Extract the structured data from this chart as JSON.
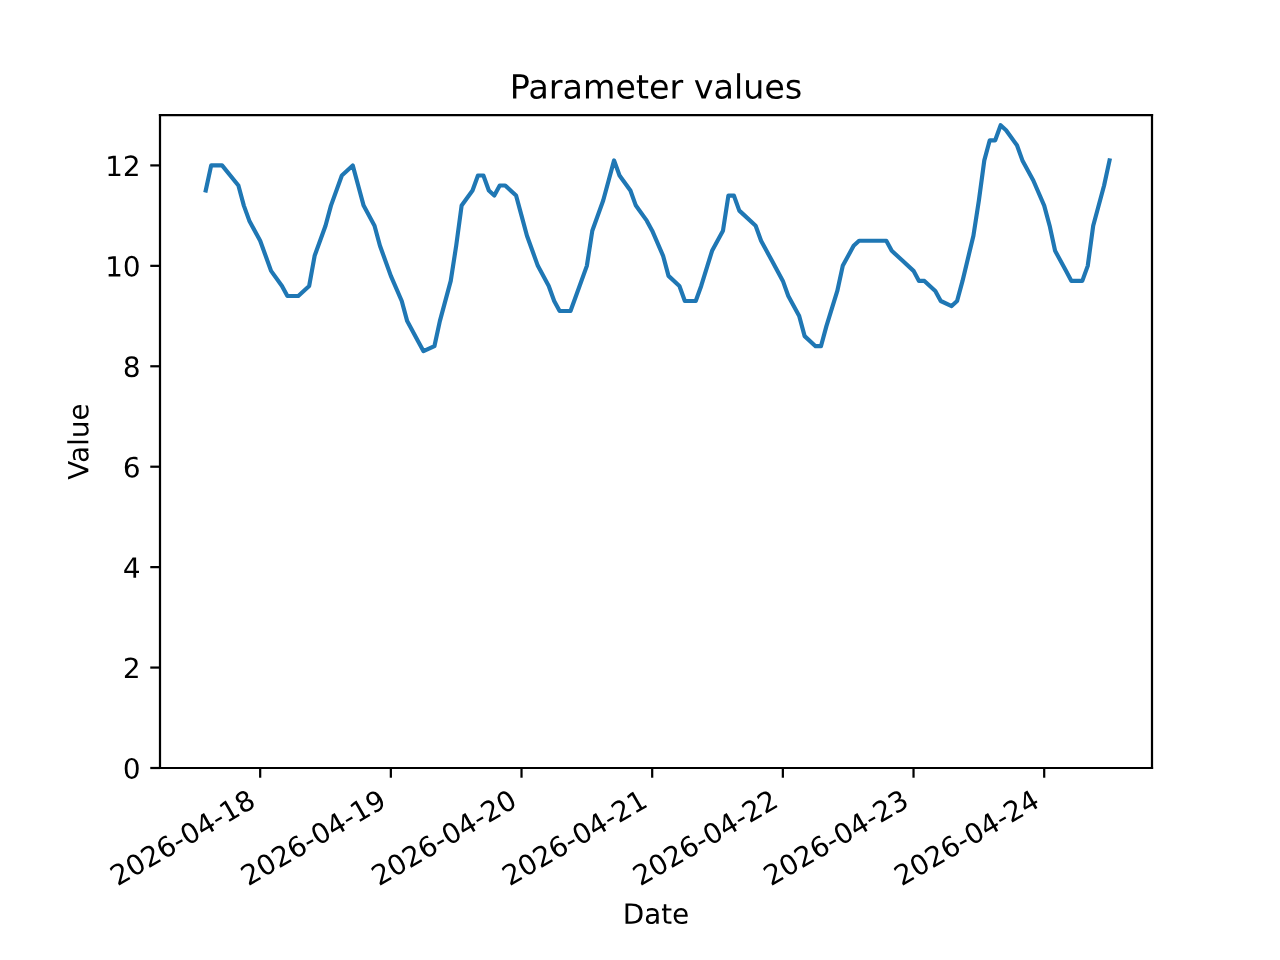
{
  "chart_data": {
    "type": "line",
    "title": "Parameter values",
    "xlabel": "Date",
    "ylabel": "Value",
    "x": [
      "2026-04-17T14:00",
      "2026-04-17T15:00",
      "2026-04-17T17:00",
      "2026-04-17T20:00",
      "2026-04-17T21:00",
      "2026-04-17T22:00",
      "2026-04-18T00:00",
      "2026-04-18T02:00",
      "2026-04-18T04:00",
      "2026-04-18T05:00",
      "2026-04-18T07:00",
      "2026-04-18T09:00",
      "2026-04-18T10:00",
      "2026-04-18T12:00",
      "2026-04-18T13:00",
      "2026-04-18T15:00",
      "2026-04-18T17:00",
      "2026-04-18T18:00",
      "2026-04-18T19:00",
      "2026-04-18T21:00",
      "2026-04-18T22:00",
      "2026-04-19T00:00",
      "2026-04-19T02:00",
      "2026-04-19T03:00",
      "2026-04-19T05:00",
      "2026-04-19T06:00",
      "2026-04-19T08:00",
      "2026-04-19T09:00",
      "2026-04-19T11:00",
      "2026-04-19T12:00",
      "2026-04-19T13:00",
      "2026-04-19T15:00",
      "2026-04-19T16:00",
      "2026-04-19T17:00",
      "2026-04-19T18:00",
      "2026-04-19T19:00",
      "2026-04-19T20:00",
      "2026-04-19T21:00",
      "2026-04-19T23:00",
      "2026-04-20T00:00",
      "2026-04-20T01:00",
      "2026-04-20T02:00",
      "2026-04-20T03:00",
      "2026-04-20T05:00",
      "2026-04-20T06:00",
      "2026-04-20T07:00",
      "2026-04-20T09:00",
      "2026-04-20T10:00",
      "2026-04-20T12:00",
      "2026-04-20T13:00",
      "2026-04-20T15:00",
      "2026-04-20T16:00",
      "2026-04-20T17:00",
      "2026-04-20T18:00",
      "2026-04-20T20:00",
      "2026-04-20T21:00",
      "2026-04-20T23:00",
      "2026-04-21T00:00",
      "2026-04-21T02:00",
      "2026-04-21T03:00",
      "2026-04-21T05:00",
      "2026-04-21T06:00",
      "2026-04-21T08:00",
      "2026-04-21T09:00",
      "2026-04-21T11:00",
      "2026-04-21T13:00",
      "2026-04-21T14:00",
      "2026-04-21T15:00",
      "2026-04-21T16:00",
      "2026-04-21T17:00",
      "2026-04-21T19:00",
      "2026-04-21T20:00",
      "2026-04-21T22:00",
      "2026-04-22T00:00",
      "2026-04-22T01:00",
      "2026-04-22T03:00",
      "2026-04-22T04:00",
      "2026-04-22T06:00",
      "2026-04-22T07:00",
      "2026-04-22T08:00",
      "2026-04-22T10:00",
      "2026-04-22T11:00",
      "2026-04-22T13:00",
      "2026-04-22T14:00",
      "2026-04-22T17:00",
      "2026-04-22T19:00",
      "2026-04-22T20:00",
      "2026-04-22T22:00",
      "2026-04-23T00:00",
      "2026-04-23T01:00",
      "2026-04-23T02:00",
      "2026-04-23T04:00",
      "2026-04-23T05:00",
      "2026-04-23T07:00",
      "2026-04-23T08:00",
      "2026-04-23T09:00",
      "2026-04-23T11:00",
      "2026-04-23T12:00",
      "2026-04-23T13:00",
      "2026-04-23T14:00",
      "2026-04-23T15:00",
      "2026-04-23T16:00",
      "2026-04-23T17:00",
      "2026-04-23T19:00",
      "2026-04-23T20:00",
      "2026-04-23T22:00",
      "2026-04-24T00:00",
      "2026-04-24T01:00",
      "2026-04-24T02:00",
      "2026-04-24T04:00",
      "2026-04-24T05:00",
      "2026-04-24T07:00",
      "2026-04-24T08:00",
      "2026-04-24T09:00",
      "2026-04-24T11:00",
      "2026-04-24T12:00"
    ],
    "series": [
      {
        "color": "#1f77b4",
        "values": [
          11.5,
          12.0,
          12.0,
          11.6,
          11.2,
          10.9,
          10.5,
          9.9,
          9.6,
          9.4,
          9.4,
          9.6,
          10.2,
          10.8,
          11.2,
          11.8,
          12.0,
          11.6,
          11.2,
          10.8,
          10.4,
          9.8,
          9.3,
          8.9,
          8.5,
          8.3,
          8.4,
          8.9,
          9.7,
          10.4,
          11.2,
          11.5,
          11.8,
          11.8,
          11.5,
          11.4,
          11.6,
          11.6,
          11.4,
          11.0,
          10.6,
          10.3,
          10.0,
          9.6,
          9.3,
          9.1,
          9.1,
          9.4,
          10.0,
          10.7,
          11.3,
          11.7,
          12.1,
          11.8,
          11.5,
          11.2,
          10.9,
          10.7,
          10.2,
          9.8,
          9.6,
          9.3,
          9.3,
          9.6,
          10.3,
          10.7,
          11.4,
          11.4,
          11.1,
          11.0,
          10.8,
          10.5,
          10.1,
          9.7,
          9.4,
          9.0,
          8.6,
          8.4,
          8.4,
          8.8,
          9.5,
          10.0,
          10.4,
          10.5,
          10.5,
          10.5,
          10.3,
          10.1,
          9.9,
          9.7,
          9.7,
          9.5,
          9.3,
          9.2,
          9.3,
          9.7,
          10.6,
          11.3,
          12.1,
          12.5,
          12.5,
          12.8,
          12.7,
          12.4,
          12.1,
          11.7,
          11.2,
          10.8,
          10.3,
          9.9,
          9.7,
          9.7,
          10.0,
          10.8,
          11.6,
          12.1
        ]
      }
    ],
    "xlim": [
      "2026-04-17T05:36",
      "2026-04-24T19:48"
    ],
    "xticks": [
      {
        "value": "2026-04-18",
        "label": "2026-04-18"
      },
      {
        "value": "2026-04-19",
        "label": "2026-04-19"
      },
      {
        "value": "2026-04-20",
        "label": "2026-04-20"
      },
      {
        "value": "2026-04-21",
        "label": "2026-04-21"
      },
      {
        "value": "2026-04-22",
        "label": "2026-04-22"
      },
      {
        "value": "2026-04-23",
        "label": "2026-04-23"
      },
      {
        "value": "2026-04-24",
        "label": "2026-04-24"
      }
    ],
    "ylim": [
      0,
      13
    ],
    "yticks": [
      0,
      2,
      4,
      6,
      8,
      10,
      12
    ],
    "grid": false,
    "legend": false
  }
}
